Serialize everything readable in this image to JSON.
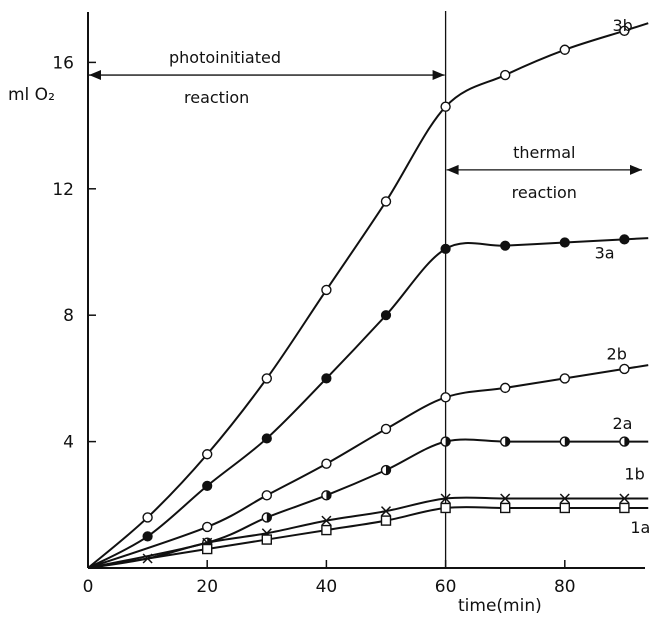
{
  "chart_data": {
    "type": "line",
    "xlabel": "time(min)",
    "ylabel": "ml O₂",
    "xlim": [
      0,
      95
    ],
    "ylim": [
      0,
      17.5
    ],
    "x_ticks": [
      0,
      20,
      40,
      60,
      80
    ],
    "y_ticks": [
      4,
      8,
      12,
      16
    ],
    "x_tick_labels": [
      "0",
      "20",
      "40",
      "60",
      "80"
    ],
    "y_tick_labels": [
      "4",
      "8",
      "12",
      "16"
    ],
    "grid": false,
    "annotations": [
      {
        "text_lines": [
          "photoinitiated",
          "reaction"
        ],
        "x_range": [
          0,
          60
        ],
        "y": 15.6
      },
      {
        "text_lines": [
          "thermal",
          "reaction"
        ],
        "x_range": [
          60,
          95
        ],
        "y": 12.6
      }
    ],
    "divider_x": 60,
    "series": [
      {
        "name": "3b",
        "marker": "open-circle",
        "x": [
          10,
          20,
          30,
          40,
          50,
          60,
          70,
          80,
          90
        ],
        "y": [
          1.6,
          3.6,
          6.0,
          8.8,
          11.6,
          14.6,
          15.6,
          16.4,
          17.0
        ]
      },
      {
        "name": "3a",
        "marker": "filled-circle",
        "x": [
          10,
          20,
          30,
          40,
          50,
          60,
          70,
          80,
          90
        ],
        "y": [
          1.0,
          2.6,
          4.1,
          6.0,
          8.0,
          10.1,
          10.2,
          10.3,
          10.4
        ]
      },
      {
        "name": "2b",
        "marker": "circle-horizontal-line",
        "x": [
          20,
          30,
          40,
          50,
          60,
          70,
          80,
          90
        ],
        "y": [
          1.3,
          2.3,
          3.3,
          4.4,
          5.4,
          5.7,
          6.0,
          6.3
        ]
      },
      {
        "name": "2a",
        "marker": "half-filled-circle",
        "x": [
          20,
          30,
          40,
          50,
          60,
          70,
          80,
          90
        ],
        "y": [
          0.8,
          1.6,
          2.3,
          3.1,
          4.0,
          4.0,
          4.0,
          4.0
        ]
      },
      {
        "name": "1b",
        "marker": "cross",
        "x": [
          10,
          20,
          30,
          40,
          50,
          60,
          70,
          80,
          90
        ],
        "y": [
          0.3,
          0.8,
          1.1,
          1.5,
          1.8,
          2.2,
          2.2,
          2.2,
          2.2
        ]
      },
      {
        "name": "1a",
        "marker": "open-square",
        "x": [
          20,
          30,
          40,
          50,
          60,
          70,
          80,
          90
        ],
        "y": [
          0.6,
          0.9,
          1.2,
          1.5,
          1.9,
          1.9,
          1.9,
          1.9
        ]
      }
    ],
    "series_label_anchor": {
      "3b": [
        88,
        17.0
      ],
      "3a": [
        85,
        9.8
      ],
      "2b": [
        87,
        6.6
      ],
      "2a": [
        88,
        4.4
      ],
      "1b": [
        90,
        2.8
      ],
      "1a": [
        91,
        1.1
      ]
    }
  }
}
